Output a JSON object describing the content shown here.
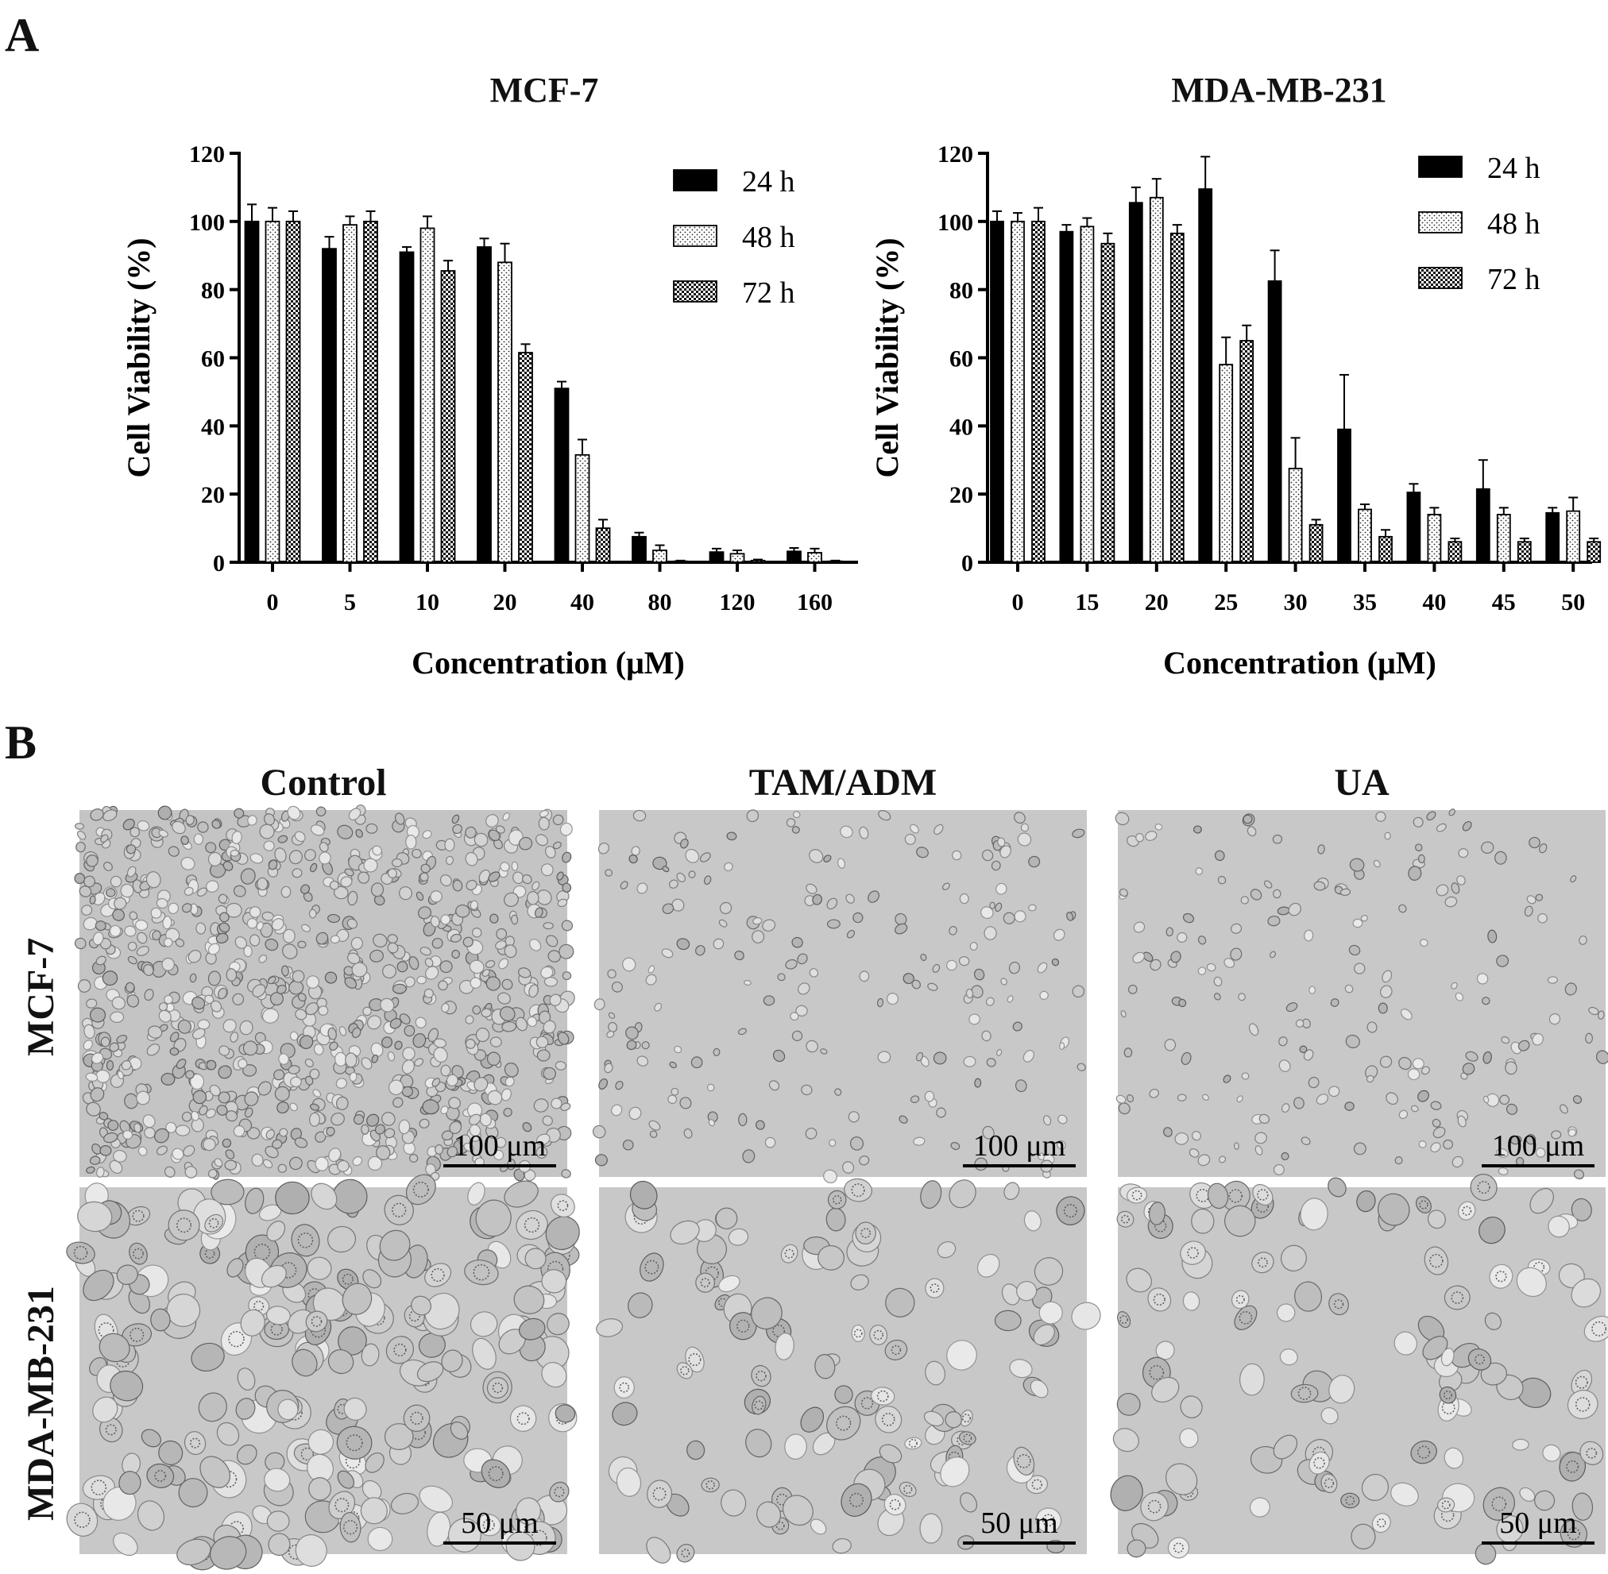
{
  "panel_a_label": "A",
  "panel_b_label": "B",
  "legend_labels": [
    "24 h",
    "48 h",
    "72 h"
  ],
  "chart_data": [
    {
      "type": "bar",
      "title": "MCF-7",
      "xlabel": "Concentration (μM)",
      "ylabel": "Cell Viability (%)",
      "ylim": [
        0,
        120
      ],
      "yticks": [
        0,
        20,
        40,
        60,
        80,
        100,
        120
      ],
      "legend_position": "top-right",
      "categories": [
        "0",
        "5",
        "10",
        "20",
        "40",
        "80",
        "120",
        "160"
      ],
      "series": [
        {
          "name": "24 h",
          "pattern": "solid",
          "values": [
            100,
            92,
            91,
            92.5,
            51,
            7.5,
            3,
            3.2
          ],
          "errors": [
            5,
            3.5,
            1.5,
            2.5,
            2,
            1.2,
            1,
            1
          ]
        },
        {
          "name": "48 h",
          "pattern": "dots",
          "values": [
            100,
            99,
            98,
            88,
            31.5,
            3.5,
            2.5,
            2.8
          ],
          "errors": [
            4,
            2.5,
            3.5,
            5.5,
            4.5,
            1.5,
            1,
            1.2
          ]
        },
        {
          "name": "72 h",
          "pattern": "checker",
          "values": [
            100,
            100,
            85.5,
            61.5,
            10,
            0.3,
            0.5,
            0.3
          ],
          "errors": [
            3,
            3,
            3,
            2.5,
            2.5,
            0.2,
            0.3,
            0.2
          ]
        }
      ]
    },
    {
      "type": "bar",
      "title": "MDA-MB-231",
      "xlabel": "Concentration (μM)",
      "ylabel": "Cell Viability (%)",
      "ylim": [
        0,
        120
      ],
      "yticks": [
        0,
        20,
        40,
        60,
        80,
        100,
        120
      ],
      "legend_position": "top-right",
      "categories": [
        "0",
        "15",
        "20",
        "25",
        "30",
        "35",
        "40",
        "45",
        "50"
      ],
      "series": [
        {
          "name": "24 h",
          "pattern": "solid",
          "values": [
            100,
            97,
            105.5,
            109.5,
            82.5,
            39,
            20.5,
            21.5,
            14.5
          ],
          "errors": [
            3,
            2,
            4.5,
            9.5,
            9,
            16,
            2.5,
            8.5,
            1.5
          ]
        },
        {
          "name": "48 h",
          "pattern": "dots",
          "values": [
            100,
            98.5,
            107,
            58,
            27.5,
            15.5,
            14,
            14,
            15
          ],
          "errors": [
            2.5,
            2.5,
            5.5,
            8,
            9,
            1.5,
            2,
            2,
            4
          ]
        },
        {
          "name": "72 h",
          "pattern": "checker",
          "values": [
            100,
            93.5,
            96.5,
            65,
            11,
            7.5,
            6,
            6,
            6
          ],
          "errors": [
            4,
            3,
            2.5,
            4.5,
            1.5,
            2,
            1,
            1,
            1
          ]
        }
      ]
    }
  ],
  "micrographs": {
    "columns": [
      "Control",
      "TAM/ADM",
      "UA"
    ],
    "rows": [
      {
        "label": "MCF-7",
        "scale": [
          "100 μm",
          "100 μm",
          "100 μm"
        ]
      },
      {
        "label": "MDA-MB-231",
        "scale": [
          "50 μm",
          "50 μm",
          "50 μm"
        ]
      }
    ]
  }
}
